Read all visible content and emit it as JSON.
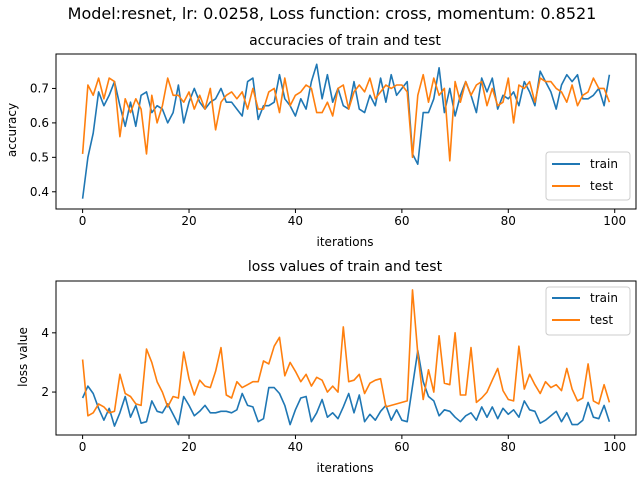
{
  "suptitle": "Model:resnet, lr: 0.0258, Loss function: cross, momentum: 0.8521",
  "colors": {
    "train": "#1f77b4",
    "test": "#ff7f0e"
  },
  "chart_data": [
    {
      "type": "line",
      "title": "accuracies of train and test",
      "xlabel": "iterations",
      "ylabel": "accuracy",
      "xlim": [
        -5,
        104
      ],
      "ylim": [
        0.35,
        0.8
      ],
      "xticks": [
        0,
        20,
        40,
        60,
        80,
        100
      ],
      "yticks": [
        0.4,
        0.5,
        0.6,
        0.7
      ],
      "ytick_labels": [
        "0.4",
        "0.5",
        "0.6",
        "0.7"
      ],
      "legend_position": "lower-right",
      "series": [
        {
          "name": "train",
          "color": "#1f77b4",
          "values": [
            0.38,
            0.5,
            0.57,
            0.69,
            0.65,
            0.68,
            0.72,
            0.65,
            0.59,
            0.66,
            0.59,
            0.68,
            0.69,
            0.63,
            0.65,
            0.64,
            0.6,
            0.63,
            0.71,
            0.6,
            0.66,
            0.7,
            0.66,
            0.64,
            0.66,
            0.67,
            0.7,
            0.66,
            0.66,
            0.64,
            0.62,
            0.72,
            0.73,
            0.61,
            0.65,
            0.65,
            0.66,
            0.74,
            0.67,
            0.65,
            0.62,
            0.67,
            0.64,
            0.72,
            0.77,
            0.67,
            0.74,
            0.66,
            0.7,
            0.65,
            0.64,
            0.72,
            0.64,
            0.63,
            0.68,
            0.65,
            0.73,
            0.66,
            0.74,
            0.68,
            0.7,
            0.72,
            0.51,
            0.48,
            0.63,
            0.63,
            0.67,
            0.76,
            0.63,
            0.7,
            0.62,
            0.68,
            0.72,
            0.68,
            0.63,
            0.73,
            0.69,
            0.73,
            0.64,
            0.68,
            0.67,
            0.69,
            0.65,
            0.72,
            0.69,
            0.65,
            0.75,
            0.72,
            0.69,
            0.64,
            0.71,
            0.74,
            0.72,
            0.74,
            0.67,
            0.67,
            0.68,
            0.7,
            0.65,
            0.74
          ]
        },
        {
          "name": "test",
          "color": "#ff7f0e",
          "values": [
            0.51,
            0.71,
            0.68,
            0.73,
            0.67,
            0.73,
            0.72,
            0.56,
            0.67,
            0.63,
            0.67,
            0.64,
            0.51,
            0.68,
            0.6,
            0.65,
            0.73,
            0.68,
            0.68,
            0.66,
            0.69,
            0.64,
            0.68,
            0.64,
            0.7,
            0.58,
            0.66,
            0.68,
            0.69,
            0.67,
            0.69,
            0.64,
            0.7,
            0.64,
            0.64,
            0.69,
            0.7,
            0.63,
            0.73,
            0.65,
            0.68,
            0.69,
            0.71,
            0.7,
            0.63,
            0.63,
            0.66,
            0.62,
            0.7,
            0.71,
            0.64,
            0.69,
            0.71,
            0.69,
            0.73,
            0.67,
            0.69,
            0.71,
            0.7,
            0.71,
            0.71,
            0.69,
            0.5,
            0.68,
            0.74,
            0.66,
            0.73,
            0.68,
            0.7,
            0.49,
            0.72,
            0.66,
            0.72,
            0.68,
            0.71,
            0.72,
            0.65,
            0.7,
            0.65,
            0.66,
            0.73,
            0.6,
            0.71,
            0.7,
            0.72,
            0.66,
            0.73,
            0.72,
            0.72,
            0.7,
            0.69,
            0.66,
            0.71,
            0.65,
            0.68,
            0.69,
            0.73,
            0.7,
            0.7,
            0.66
          ]
        }
      ]
    },
    {
      "type": "line",
      "title": "loss values of train and test",
      "xlabel": "iterations",
      "ylabel": "loss value",
      "xlim": [
        -5,
        104
      ],
      "ylim": [
        0.55,
        5.75
      ],
      "xticks": [
        0,
        20,
        40,
        60,
        80,
        100
      ],
      "yticks": [
        2,
        4
      ],
      "ytick_labels": [
        "2",
        "4"
      ],
      "legend_position": "top-right",
      "series": [
        {
          "name": "train",
          "color": "#1f77b4",
          "values": [
            1.8,
            2.2,
            1.95,
            1.45,
            1.05,
            1.45,
            0.85,
            1.3,
            1.85,
            1.15,
            1.55,
            0.95,
            1.0,
            1.7,
            1.35,
            1.3,
            1.6,
            1.25,
            0.9,
            1.85,
            1.55,
            1.2,
            1.35,
            1.55,
            1.3,
            1.3,
            1.35,
            1.35,
            1.3,
            1.4,
            1.95,
            1.55,
            1.5,
            1.0,
            1.1,
            2.15,
            2.15,
            1.95,
            1.55,
            0.9,
            1.4,
            1.8,
            1.85,
            1.0,
            1.3,
            1.75,
            1.15,
            1.3,
            1.1,
            1.5,
            1.95,
            1.3,
            1.9,
            1.0,
            1.25,
            1.05,
            1.35,
            1.55,
            1.05,
            1.4,
            1.05,
            1.0,
            2.2,
            3.4,
            2.35,
            1.85,
            1.7,
            1.2,
            1.4,
            1.35,
            1.15,
            1.0,
            1.2,
            1.3,
            1.05,
            1.5,
            1.15,
            1.5,
            1.1,
            1.45,
            1.25,
            1.4,
            1.15,
            1.7,
            1.4,
            1.35,
            0.95,
            1.05,
            1.2,
            1.35,
            1.0,
            1.3,
            0.9,
            0.9,
            1.05,
            1.65,
            1.15,
            1.1,
            1.55,
            1.0
          ]
        },
        {
          "name": "test",
          "color": "#ff7f0e",
          "values": [
            3.1,
            1.2,
            1.3,
            1.6,
            1.5,
            1.3,
            1.35,
            2.6,
            1.95,
            1.85,
            1.6,
            1.55,
            3.45,
            3.0,
            2.35,
            2.0,
            1.5,
            1.85,
            1.8,
            3.35,
            2.45,
            1.9,
            2.4,
            2.2,
            2.15,
            2.7,
            3.5,
            1.9,
            1.8,
            2.35,
            2.15,
            2.25,
            2.35,
            2.35,
            3.05,
            2.95,
            3.55,
            3.85,
            2.55,
            3.0,
            2.7,
            2.35,
            2.6,
            2.2,
            2.5,
            2.4,
            2.0,
            2.2,
            2.0,
            4.2,
            2.35,
            2.4,
            2.6,
            1.95,
            2.3,
            2.4,
            2.45,
            1.5,
            1.55,
            1.6,
            1.65,
            1.7,
            5.45,
            3.3,
            1.75,
            2.75,
            2.0,
            3.9,
            2.3,
            2.25,
            4.0,
            1.9,
            1.9,
            3.5,
            1.65,
            1.8,
            2.0,
            2.4,
            2.8,
            2.05,
            1.75,
            1.7,
            3.55,
            2.1,
            2.6,
            2.25,
            1.95,
            2.35,
            2.15,
            2.25,
            2.05,
            2.8,
            2.1,
            1.7,
            1.8,
            2.95,
            1.7,
            1.6,
            2.25,
            1.65
          ]
        }
      ]
    }
  ]
}
